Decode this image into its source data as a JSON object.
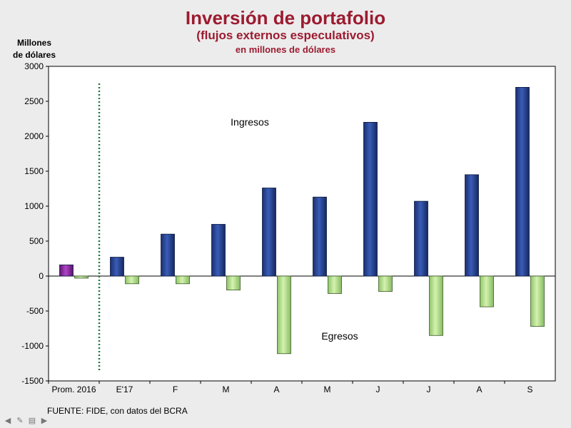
{
  "title": "Inversión de portafolio",
  "subtitle": "(flujos externos especulativos)",
  "subtitle2": "en millones de dólares",
  "y_unit_line1": "Millones",
  "y_unit_line2": "de dólares",
  "source": "FUENTE: FIDE, con datos del BCRA",
  "colors": {
    "title": "#9c1b30",
    "ingresos": "#24428e",
    "egresos": "#b8e38e",
    "prom_ingreso": "#8e2aa2",
    "divider": "#1d7a3c"
  },
  "chart_data": {
    "type": "bar",
    "title": "Inversión de portafolio",
    "subtitle": "(flujos externos especulativos)",
    "xlabel": "",
    "ylabel": "Millones de dólares",
    "ylim": [
      -1500,
      3000
    ],
    "yticks": [
      -1500,
      -1000,
      -500,
      0,
      500,
      1000,
      1500,
      2000,
      2500,
      3000
    ],
    "categories": [
      "Prom. 2016",
      "E'17",
      "F",
      "M",
      "A",
      "M",
      "J",
      "J",
      "A",
      "S"
    ],
    "series": [
      {
        "name": "Ingresos",
        "values": [
          160,
          270,
          600,
          740,
          1260,
          1130,
          2200,
          1070,
          1450,
          2700
        ]
      },
      {
        "name": "Egresos",
        "values": [
          -30,
          -110,
          -110,
          -200,
          -1110,
          -250,
          -220,
          -850,
          -440,
          -720
        ]
      }
    ],
    "annotations": [
      "Ingresos",
      "Egresos"
    ],
    "grid": false
  }
}
